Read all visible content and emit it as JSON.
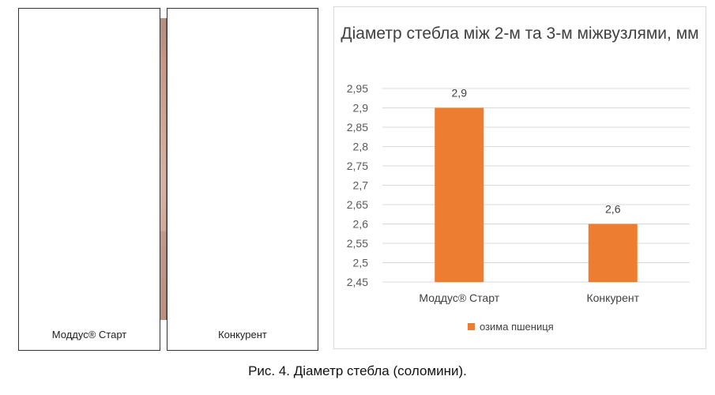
{
  "photo_panels": {
    "left_label": "Моддус® Старт",
    "right_label": "Конкурент"
  },
  "chart_data": {
    "type": "bar",
    "title": "Діаметр стебла між 2-м та 3-м міжвузлями, мм",
    "categories": [
      "Моддус® Старт",
      "Конкурент"
    ],
    "series": [
      {
        "name": "озима пшениця",
        "values": [
          2.9,
          2.6
        ],
        "color": "#ED7D31"
      }
    ],
    "data_labels": [
      "2,9",
      "2,6"
    ],
    "ylim": [
      2.45,
      2.95
    ],
    "yticks": [
      "2,45",
      "2,5",
      "2,55",
      "2,6",
      "2,65",
      "2,7",
      "2,75",
      "2,8",
      "2,85",
      "2,9",
      "2,95"
    ],
    "grid": true,
    "legend_position": "bottom"
  },
  "figure_caption": "Рис. 4. Діаметр стебла (соломини)."
}
